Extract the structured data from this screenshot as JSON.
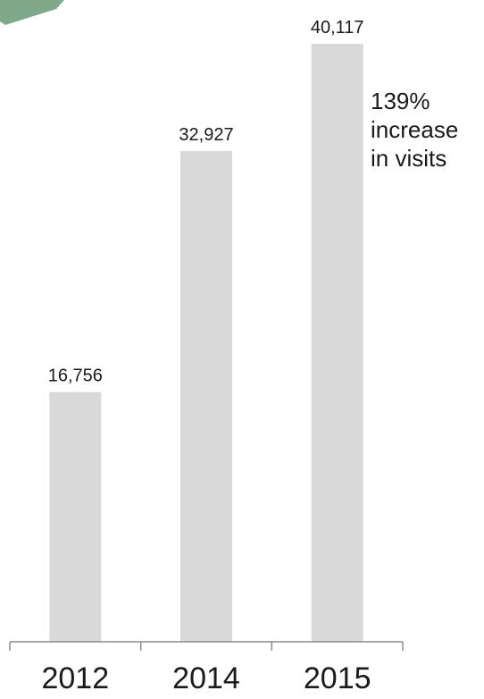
{
  "chart_data": {
    "type": "bar",
    "categories": [
      "2012",
      "2014",
      "2015"
    ],
    "values": [
      16756,
      32927,
      40117
    ],
    "value_labels": [
      "16,756",
      "32,927",
      "40,117"
    ],
    "title": "",
    "xlabel": "",
    "ylabel": "",
    "ylim": [
      0,
      40117
    ],
    "grid": false,
    "legend": "none",
    "annotation": {
      "lines": [
        "139%",
        "increase",
        "in visits"
      ]
    }
  },
  "colors": {
    "bar": "#d9d9d9",
    "axis": "#8c8c8c",
    "text": "#1a1a1a",
    "decoration": "#7fa88a"
  }
}
